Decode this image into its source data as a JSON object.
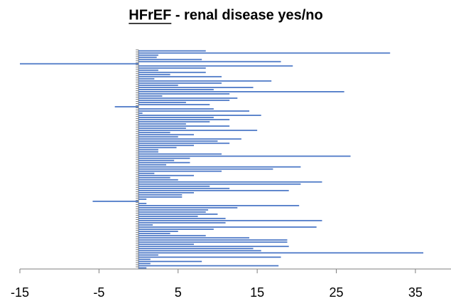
{
  "chart_data": {
    "type": "hbar",
    "title": "HFrEF - renal disease yes/no",
    "title_underlined": "HFrEF",
    "categories": [
      null,
      null,
      null,
      null,
      null,
      null,
      null,
      null,
      null,
      null,
      null,
      null,
      null,
      null,
      null,
      null,
      null,
      null,
      null,
      null,
      null,
      null,
      null,
      null,
      null,
      null,
      null,
      null,
      null,
      null,
      null,
      null,
      null,
      null,
      null,
      null,
      null,
      null,
      null,
      null,
      null,
      null,
      null,
      null,
      null,
      null,
      null,
      null,
      null,
      null,
      null,
      null,
      null,
      null,
      null,
      null,
      null,
      null,
      null,
      null,
      null,
      null,
      null,
      null,
      null,
      null,
      null,
      null,
      null,
      null,
      null,
      null,
      null,
      null,
      null,
      null,
      null,
      null,
      null,
      null,
      null,
      null,
      null,
      null,
      null,
      null,
      null,
      null,
      null,
      null,
      null,
      null,
      null,
      null,
      null,
      null,
      null,
      null,
      null,
      null,
      null,
      null
    ],
    "values": [
      8.5,
      31.8,
      2.5,
      2.3,
      8,
      18,
      -15,
      19.5,
      8.5,
      2.5,
      8.5,
      4,
      10.5,
      2,
      16.8,
      10.5,
      5,
      14.5,
      9.5,
      26,
      11.5,
      3,
      12.5,
      11.5,
      6,
      9,
      -3,
      9.5,
      14,
      0.5,
      15.5,
      9.5,
      11.5,
      9,
      6,
      11.5,
      6,
      15,
      4,
      7,
      5,
      13,
      10,
      11.5,
      7,
      4.8,
      2.5,
      2.5,
      10.5,
      26.8,
      6.5,
      4.5,
      6.5,
      3.5,
      20.5,
      17,
      10.5,
      2,
      7,
      4,
      5,
      23.2,
      20.5,
      9,
      11.5,
      19,
      7,
      5.5,
      5.5,
      1,
      -5.8,
      1,
      20.3,
      12.5,
      8.8,
      8.5,
      10,
      7.5,
      11,
      23.2,
      11,
      1.8,
      22.5,
      9.5,
      5,
      4,
      8.5,
      14,
      18.8,
      18.8,
      7,
      19,
      14.5,
      15.5,
      36,
      2.5,
      18,
      1.5,
      8,
      1.5,
      17.7,
      1
    ],
    "color": "#4472c4",
    "xlim": [
      -15,
      39.5
    ],
    "xticks": [
      -15,
      -5,
      5,
      15,
      25,
      35
    ]
  }
}
